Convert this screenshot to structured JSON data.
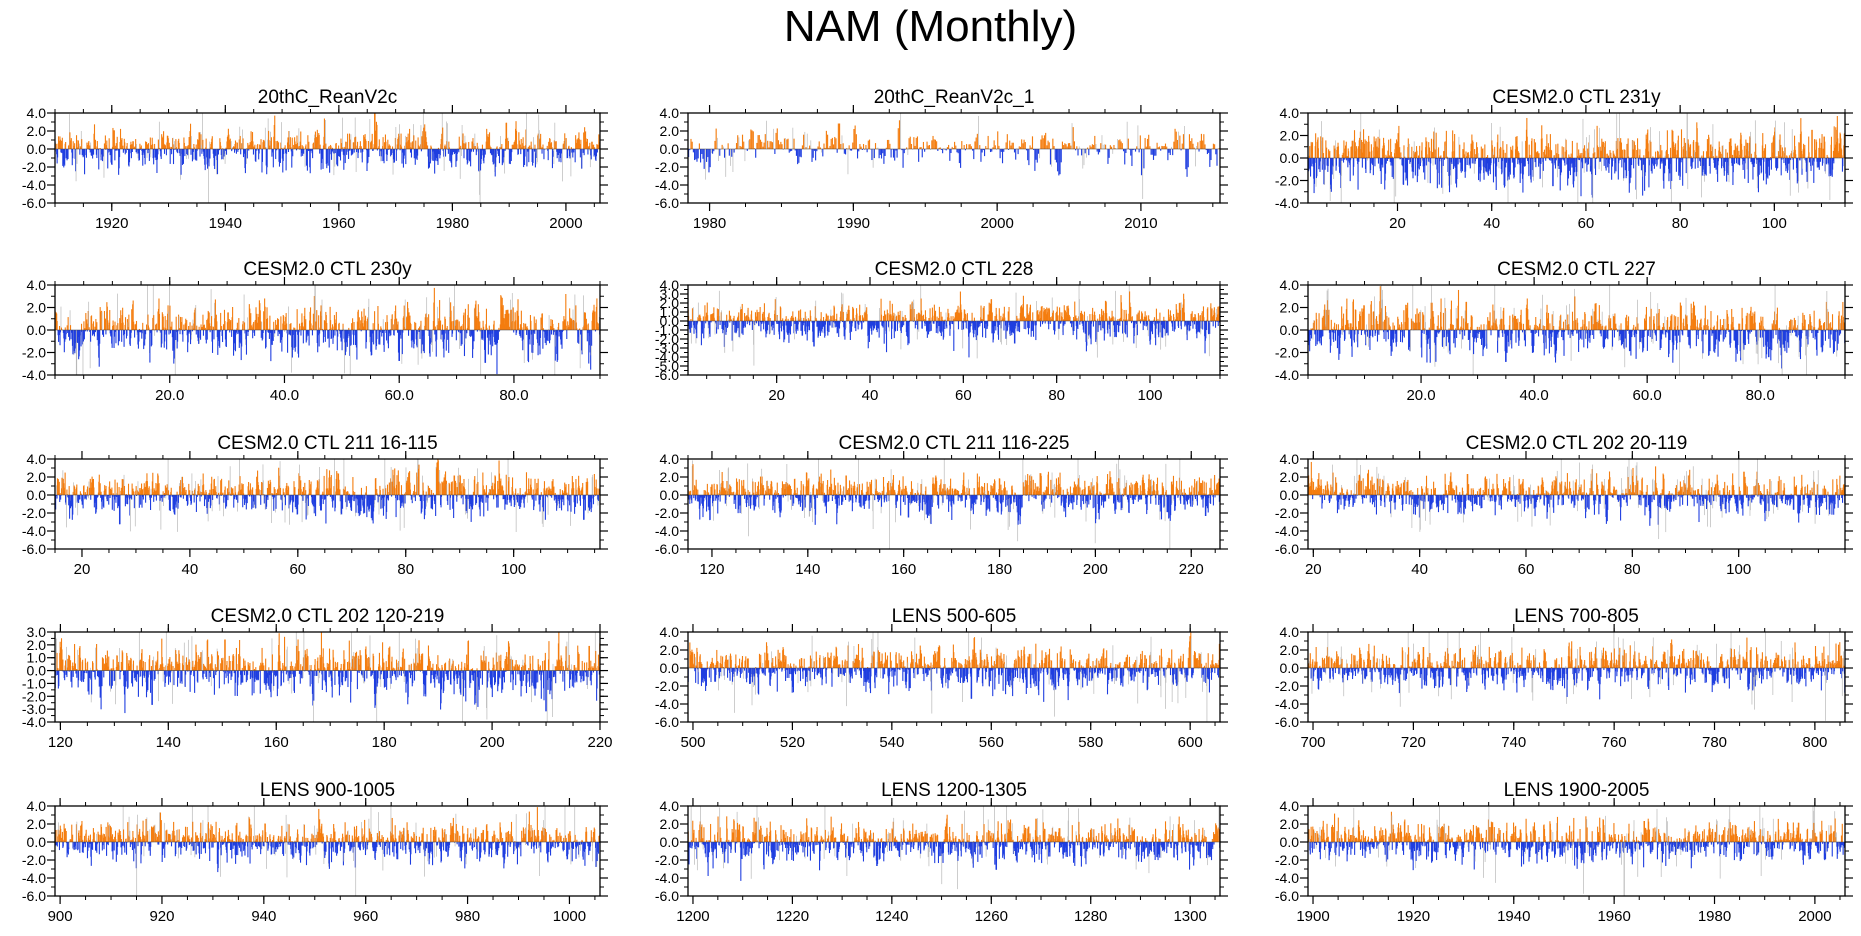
{
  "title": "NAM (Monthly)",
  "colors": {
    "positive": "#f47d0f",
    "negative": "#1f3ee0",
    "axis": "#000000",
    "faint": "#b8b8b8"
  },
  "chart_data": [
    {
      "type": "bar",
      "title": "20thC_ReanV2c",
      "xlim": [
        1910,
        2006
      ],
      "ylim": [
        -6,
        4
      ],
      "yticks": [
        4.0,
        2.0,
        0.0,
        -2.0,
        -4.0,
        -6.0
      ],
      "ytick_labels": [
        "4.0",
        "2.0",
        "0.0",
        "-2.0",
        "-4.0",
        "-6.0"
      ],
      "xticks": [
        1920,
        1940,
        1960,
        1980,
        2000
      ],
      "xtick_labels": [
        "1920",
        "1940",
        "1960",
        "1980",
        "2000"
      ],
      "bars_per_unit": 12,
      "amp_pos": 1.0,
      "amp_neg": 1.1,
      "seed": 11,
      "peaks": [
        {
          "x": 1989.5,
          "v": 3.5
        },
        {
          "x": 1991.2,
          "v": 3.2
        },
        {
          "x": 1993.0,
          "v": 2.6
        },
        {
          "x": 1947.3,
          "v": -2.9
        }
      ]
    },
    {
      "type": "bar",
      "title": "20thC_ReanV2c_1",
      "xlim": [
        1978.5,
        2015.5
      ],
      "ylim": [
        -6,
        4
      ],
      "yticks": [
        4.0,
        2.0,
        0.0,
        -2.0,
        -4.0,
        -6.0
      ],
      "ytick_labels": [
        "4.0",
        "2.0",
        "0.0",
        "-2.0",
        "-4.0",
        "-6.0"
      ],
      "xticks": [
        1980,
        1990,
        2000,
        2010
      ],
      "xtick_labels": [
        "1980",
        "1990",
        "2000",
        "2010"
      ],
      "bars_per_unit": 12,
      "amp_pos": 0.9,
      "amp_neg": 0.9,
      "seed": 23,
      "peaks": [
        {
          "x": 1989.0,
          "v": 3.4
        },
        {
          "x": 1993.2,
          "v": 3.3
        },
        {
          "x": 1990.1,
          "v": 2.9
        },
        {
          "x": 2010.1,
          "v": -3.8
        },
        {
          "x": 2013.2,
          "v": -3.2
        }
      ]
    },
    {
      "type": "bar",
      "title": "CESM2.0 CTL 231y",
      "xlim": [
        1,
        115
      ],
      "ylim": [
        -4,
        4
      ],
      "yticks": [
        4.0,
        2.0,
        0.0,
        -2.0,
        -4.0
      ],
      "ytick_labels": [
        "4.0",
        "2.0",
        "0.0",
        "-2.0",
        "-4.0"
      ],
      "xticks": [
        20,
        40,
        60,
        80,
        100
      ],
      "xtick_labels": [
        "20",
        "40",
        "60",
        "80",
        "100"
      ],
      "bars_per_unit": 12,
      "amp_pos": 1.1,
      "amp_neg": 1.2,
      "seed": 37,
      "peaks": [
        {
          "x": 108.0,
          "v": 3.0
        },
        {
          "x": 78.1,
          "v": -3.6
        },
        {
          "x": 53.0,
          "v": -3.0
        }
      ]
    },
    {
      "type": "bar",
      "title": "CESM2.0 CTL 230y",
      "xlim": [
        0,
        95
      ],
      "ylim": [
        -4,
        4
      ],
      "yticks": [
        4.0,
        2.0,
        0.0,
        -2.0,
        -4.0
      ],
      "ytick_labels": [
        "4.0",
        "2.0",
        "0.0",
        "-2.0",
        "-4.0"
      ],
      "xticks": [
        20,
        40,
        60,
        80
      ],
      "xtick_labels": [
        "20.0",
        "40.0",
        "60.0",
        "80.0"
      ],
      "bars_per_unit": 12,
      "amp_pos": 1.1,
      "amp_neg": 1.1,
      "seed": 41,
      "peaks": [
        {
          "x": 20.0,
          "v": 2.6
        },
        {
          "x": 60.0,
          "v": -3.3
        },
        {
          "x": 75.0,
          "v": -3.5
        }
      ]
    },
    {
      "type": "bar",
      "title": "CESM2.0 CTL 228",
      "xlim": [
        1,
        115
      ],
      "ylim": [
        -6,
        4
      ],
      "yticks": [
        4.0,
        3.0,
        2.0,
        1.0,
        0.0,
        -1.0,
        -2.0,
        -3.0,
        -4.0,
        -5.0,
        -6.0
      ],
      "ytick_labels": [
        "4.0",
        "3.0",
        "2.0",
        "1.0",
        "0.0",
        "-1.0",
        "-2.0",
        "-3.0",
        "-4.0",
        "-5.0",
        "-6.0"
      ],
      "xticks": [
        20,
        40,
        60,
        80,
        100
      ],
      "xtick_labels": [
        "20",
        "40",
        "60",
        "80",
        "100"
      ],
      "bars_per_unit": 12,
      "amp_pos": 1.0,
      "amp_neg": 1.1,
      "seed": 53,
      "peaks": [
        {
          "x": 66.0,
          "v": 2.9
        },
        {
          "x": 28.0,
          "v": -3.4
        },
        {
          "x": 71.0,
          "v": -3.0
        }
      ]
    },
    {
      "type": "bar",
      "title": "CESM2.0 CTL 227",
      "xlim": [
        0,
        95
      ],
      "ylim": [
        -4,
        4
      ],
      "yticks": [
        4.0,
        2.0,
        0.0,
        -2.0,
        -4.0
      ],
      "ytick_labels": [
        "4.0",
        "2.0",
        "0.0",
        "-2.0",
        "-4.0"
      ],
      "xticks": [
        20,
        40,
        60,
        80
      ],
      "xtick_labels": [
        "20.0",
        "40.0",
        "60.0",
        "80.0"
      ],
      "bars_per_unit": 12,
      "amp_pos": 1.1,
      "amp_neg": 1.1,
      "seed": 67,
      "peaks": [
        {
          "x": 28.0,
          "v": 3.0
        },
        {
          "x": 66.0,
          "v": 2.6
        },
        {
          "x": 35.0,
          "v": -3.4
        }
      ]
    },
    {
      "type": "bar",
      "title": "CESM2.0 CTL 211 16-115",
      "xlim": [
        15,
        116
      ],
      "ylim": [
        -6,
        4
      ],
      "yticks": [
        4.0,
        2.0,
        0.0,
        -2.0,
        -4.0,
        -6.0
      ],
      "ytick_labels": [
        "4.0",
        "2.0",
        "0.0",
        "-2.0",
        "-4.0",
        "-6.0"
      ],
      "xticks": [
        20,
        40,
        60,
        80,
        100
      ],
      "xtick_labels": [
        "20",
        "40",
        "60",
        "80",
        "100"
      ],
      "bars_per_unit": 12,
      "amp_pos": 1.1,
      "amp_neg": 1.1,
      "seed": 79,
      "peaks": [
        {
          "x": 89.0,
          "v": 2.6
        },
        {
          "x": 27.0,
          "v": -3.9
        },
        {
          "x": 113.0,
          "v": -3.3
        }
      ]
    },
    {
      "type": "bar",
      "title": "CESM2.0 CTL 211 116-225",
      "xlim": [
        115,
        226
      ],
      "ylim": [
        -6,
        4
      ],
      "yticks": [
        4.0,
        2.0,
        0.0,
        -2.0,
        -4.0,
        -6.0
      ],
      "ytick_labels": [
        "4.0",
        "2.0",
        "0.0",
        "-2.0",
        "-4.0",
        "-6.0"
      ],
      "xticks": [
        120,
        140,
        160,
        180,
        200,
        220
      ],
      "xtick_labels": [
        "120",
        "140",
        "160",
        "180",
        "200",
        "220"
      ],
      "bars_per_unit": 12,
      "amp_pos": 1.1,
      "amp_neg": 1.1,
      "seed": 83,
      "peaks": [
        {
          "x": 148.0,
          "v": 2.6
        },
        {
          "x": 161.0,
          "v": -3.0
        },
        {
          "x": 223.0,
          "v": -2.8
        }
      ]
    },
    {
      "type": "bar",
      "title": "CESM2.0 CTL 202 20-119",
      "xlim": [
        19,
        120
      ],
      "ylim": [
        -6,
        4
      ],
      "yticks": [
        4.0,
        2.0,
        0.0,
        -2.0,
        -4.0,
        -6.0
      ],
      "ytick_labels": [
        "4.0",
        "2.0",
        "0.0",
        "-2.0",
        "-4.0",
        "-6.0"
      ],
      "xticks": [
        20,
        40,
        60,
        80,
        100
      ],
      "xtick_labels": [
        "20",
        "40",
        "60",
        "80",
        "100"
      ],
      "bars_per_unit": 12,
      "amp_pos": 1.1,
      "amp_neg": 1.1,
      "seed": 97,
      "peaks": [
        {
          "x": 49.0,
          "v": 2.8
        },
        {
          "x": 101.0,
          "v": 3.1
        },
        {
          "x": 40.0,
          "v": -3.0
        }
      ]
    },
    {
      "type": "bar",
      "title": "CESM2.0 CTL 202 120-219",
      "xlim": [
        119,
        220
      ],
      "ylim": [
        -4,
        3
      ],
      "yticks": [
        3.0,
        2.0,
        1.0,
        0.0,
        -1.0,
        -2.0,
        -3.0,
        -4.0
      ],
      "ytick_labels": [
        "3.0",
        "2.0",
        "1.0",
        "0.0",
        "-1.0",
        "-2.0",
        "-3.0",
        "-4.0"
      ],
      "xticks": [
        120,
        140,
        160,
        180,
        200,
        220
      ],
      "xtick_labels": [
        "120",
        "140",
        "160",
        "180",
        "200",
        "220"
      ],
      "bars_per_unit": 12,
      "amp_pos": 0.9,
      "amp_neg": 1.0,
      "seed": 101,
      "peaks": [
        {
          "x": 150.5,
          "v": 2.9
        },
        {
          "x": 120.2,
          "v": 2.6
        },
        {
          "x": 218.0,
          "v": 2.3
        },
        {
          "x": 210.0,
          "v": -3.8
        },
        {
          "x": 137.0,
          "v": -3.2
        }
      ]
    },
    {
      "type": "bar",
      "title": "LENS 500-605",
      "xlim": [
        499,
        606
      ],
      "ylim": [
        -6,
        4
      ],
      "yticks": [
        4.0,
        2.0,
        0.0,
        -2.0,
        -4.0,
        -6.0
      ],
      "ytick_labels": [
        "4.0",
        "2.0",
        "0.0",
        "-2.0",
        "-4.0",
        "-6.0"
      ],
      "xticks": [
        500,
        520,
        540,
        560,
        580,
        600
      ],
      "xtick_labels": [
        "500",
        "520",
        "540",
        "560",
        "580",
        "600"
      ],
      "bars_per_unit": 12,
      "amp_pos": 1.1,
      "amp_neg": 1.1,
      "seed": 113,
      "peaks": [
        {
          "x": 556.0,
          "v": -4.1
        },
        {
          "x": 548.0,
          "v": -3.0
        }
      ]
    },
    {
      "type": "bar",
      "title": "LENS 700-805",
      "xlim": [
        699,
        806
      ],
      "ylim": [
        -6,
        4
      ],
      "yticks": [
        4.0,
        2.0,
        0.0,
        -2.0,
        -4.0,
        -6.0
      ],
      "ytick_labels": [
        "4.0",
        "2.0",
        "0.0",
        "-2.0",
        "-4.0",
        "-6.0"
      ],
      "xticks": [
        700,
        720,
        740,
        760,
        780,
        800
      ],
      "xtick_labels": [
        "700",
        "720",
        "740",
        "760",
        "780",
        "800"
      ],
      "bars_per_unit": 12,
      "amp_pos": 1.1,
      "amp_neg": 1.0,
      "seed": 127,
      "peaks": [
        {
          "x": 722.0,
          "v": 2.8
        },
        {
          "x": 760.0,
          "v": 2.6
        }
      ]
    },
    {
      "type": "bar",
      "title": "LENS 900-1005",
      "xlim": [
        899,
        1006
      ],
      "ylim": [
        -6,
        4
      ],
      "yticks": [
        4.0,
        2.0,
        0.0,
        -2.0,
        -4.0,
        -6.0
      ],
      "ytick_labels": [
        "4.0",
        "2.0",
        "0.0",
        "-2.0",
        "-4.0",
        "-6.0"
      ],
      "xticks": [
        900,
        920,
        940,
        960,
        980,
        1000
      ],
      "xtick_labels": [
        "900",
        "920",
        "940",
        "960",
        "980",
        "1000"
      ],
      "bars_per_unit": 12,
      "amp_pos": 1.1,
      "amp_neg": 1.1,
      "seed": 131,
      "peaks": [
        {
          "x": 926.0,
          "v": 2.7
        },
        {
          "x": 915.0,
          "v": -3.5
        },
        {
          "x": 958.0,
          "v": -3.4
        }
      ]
    },
    {
      "type": "bar",
      "title": "LENS 1200-1305",
      "xlim": [
        1199,
        1306
      ],
      "ylim": [
        -6,
        4
      ],
      "yticks": [
        4.0,
        2.0,
        0.0,
        -2.0,
        -4.0,
        -6.0
      ],
      "ytick_labels": [
        "4.0",
        "2.0",
        "0.0",
        "-2.0",
        "-4.0",
        "-6.0"
      ],
      "xticks": [
        1200,
        1220,
        1240,
        1260,
        1280,
        1300
      ],
      "xtick_labels": [
        "1200",
        "1220",
        "1240",
        "1260",
        "1280",
        "1300"
      ],
      "bars_per_unit": 12,
      "amp_pos": 1.1,
      "amp_neg": 1.1,
      "seed": 139,
      "peaks": [
        {
          "x": 1269.0,
          "v": 3.1
        },
        {
          "x": 1261.0,
          "v": -3.7
        },
        {
          "x": 1237.0,
          "v": -3.2
        }
      ]
    },
    {
      "type": "bar",
      "title": "LENS 1900-2005",
      "xlim": [
        1899,
        2006
      ],
      "ylim": [
        -6,
        4
      ],
      "yticks": [
        4.0,
        2.0,
        0.0,
        -2.0,
        -4.0,
        -6.0
      ],
      "ytick_labels": [
        "4.0",
        "2.0",
        "0.0",
        "-2.0",
        "-4.0",
        "-6.0"
      ],
      "xticks": [
        1900,
        1920,
        1940,
        1960,
        1980,
        2000
      ],
      "xtick_labels": [
        "1900",
        "1920",
        "1940",
        "1960",
        "1980",
        "2000"
      ],
      "bars_per_unit": 12,
      "amp_pos": 1.1,
      "amp_neg": 1.1,
      "seed": 149,
      "peaks": [
        {
          "x": 1962.0,
          "v": -4.8
        },
        {
          "x": 1935.0,
          "v": 3.0
        },
        {
          "x": 1966.0,
          "v": 2.8
        }
      ]
    }
  ]
}
